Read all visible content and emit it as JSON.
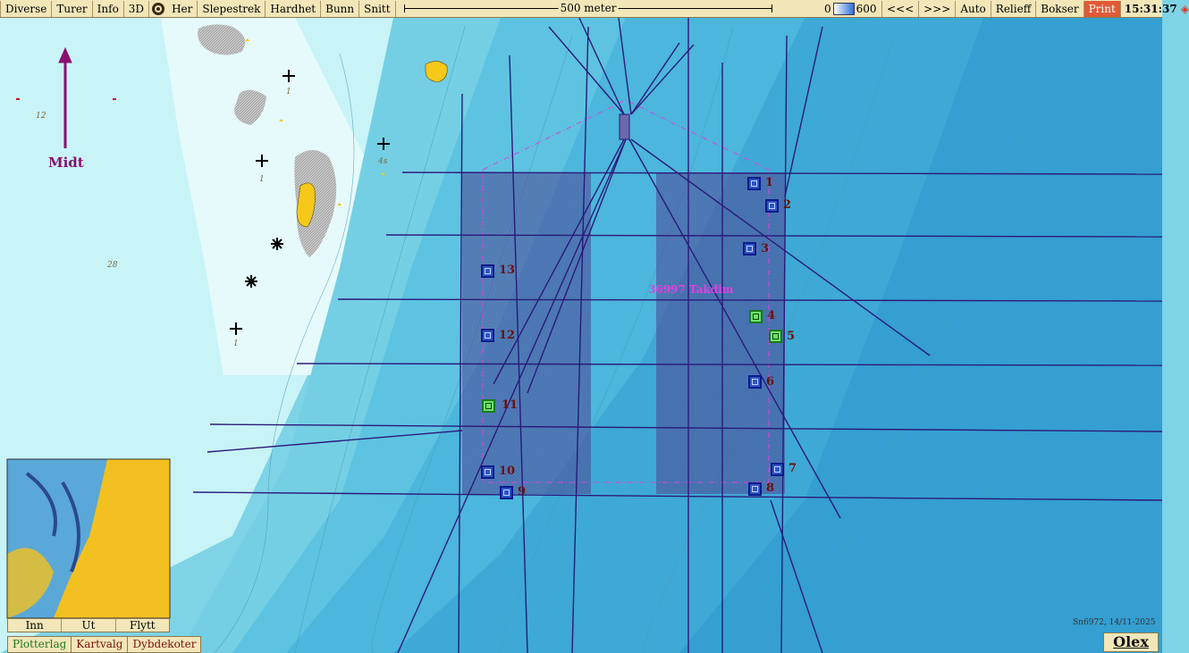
{
  "toolbar": {
    "left_buttons": [
      "Diverse",
      "Turer",
      "Info",
      "3D"
    ],
    "mid_buttons": [
      "Her",
      "Slepestrek",
      "Hardhet",
      "Bunn",
      "Snitt"
    ],
    "scale_label": "500 meter",
    "depth_min": "0",
    "depth_max": "600",
    "right_buttons": [
      "<<<",
      ">>>",
      "Auto",
      "Relieff",
      "Bokser"
    ],
    "print_label": "Print",
    "clock": "15:31:37"
  },
  "map": {
    "north_label": "Midt",
    "area_label": "36997 Takdim",
    "depth_numbers": [
      "12",
      "28",
      "1",
      "1",
      "1",
      "4s"
    ],
    "waypoints": [
      {
        "n": "1",
        "type": "blue"
      },
      {
        "n": "2",
        "type": "blue"
      },
      {
        "n": "3",
        "type": "blue"
      },
      {
        "n": "4",
        "type": "green"
      },
      {
        "n": "5",
        "type": "green"
      },
      {
        "n": "6",
        "type": "blue"
      },
      {
        "n": "7",
        "type": "blue"
      },
      {
        "n": "8",
        "type": "blue"
      },
      {
        "n": "9",
        "type": "blue"
      },
      {
        "n": "10",
        "type": "blue"
      },
      {
        "n": "11",
        "type": "green"
      },
      {
        "n": "12",
        "type": "blue"
      },
      {
        "n": "13",
        "type": "blue"
      }
    ]
  },
  "minimap_buttons": [
    "Inn",
    "Ut",
    "Flytt"
  ],
  "bottom_tabs": [
    "Plotterlag",
    "Kartvalg",
    "Dybdekoter"
  ],
  "stamp": "Sn6972, 14/11-2025",
  "logo": "Olex"
}
